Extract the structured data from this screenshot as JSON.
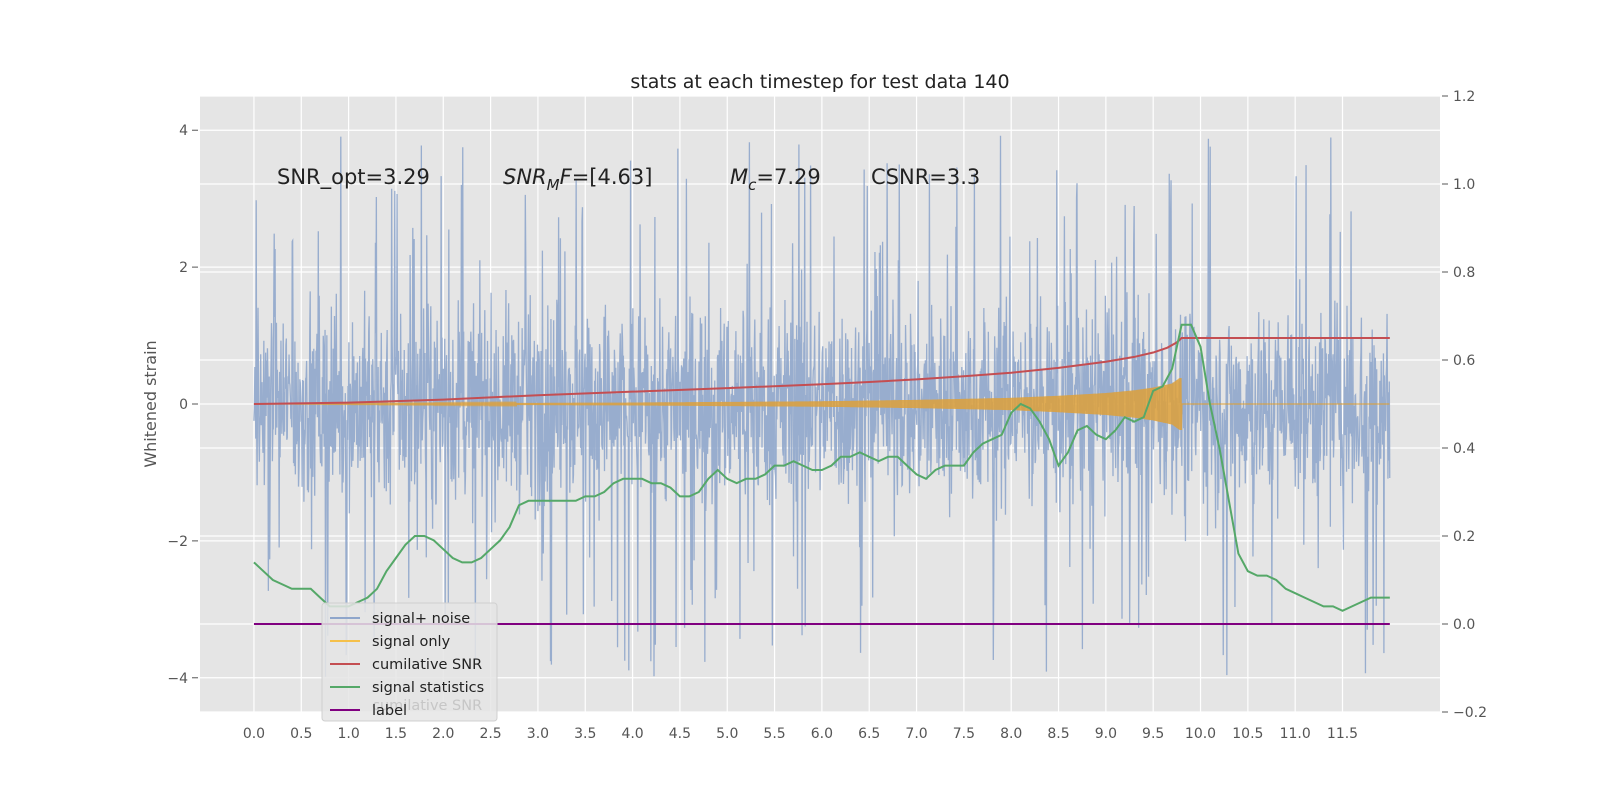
{
  "chart_data": {
    "type": "line",
    "title": "stats at each timestep for test data 140",
    "ylabel": "Whitened strain",
    "xlim": [
      -0.57,
      12.53
    ],
    "ylim": [
      -4.5,
      4.5
    ],
    "y2lim": [
      -0.2,
      1.2
    ],
    "grid": true,
    "background": "#e5e5e5",
    "x_ticks": [
      "0.0",
      "0.5",
      "1.0",
      "1.5",
      "2.0",
      "2.5",
      "3.0",
      "3.5",
      "4.0",
      "4.5",
      "5.0",
      "5.5",
      "6.0",
      "6.5",
      "7.0",
      "7.5",
      "8.0",
      "8.5",
      "9.0",
      "9.5",
      "10.0",
      "10.5",
      "11.0",
      "11.5"
    ],
    "y_ticks": [
      "−4",
      "−2",
      "0",
      "2",
      "4"
    ],
    "y2_ticks": [
      "−0.2",
      "0.0",
      "0.2",
      "0.4",
      "0.6",
      "0.8",
      "1.0",
      "1.2"
    ],
    "annotations": [
      {
        "text": "SNR_opt=3.29",
        "x": 0.2,
        "y": 3.3,
        "italic": false
      },
      {
        "text": "SNR_MF=[4.63]",
        "x": 2.6,
        "y": 3.3,
        "italic": true,
        "latex": "SNR_M F=[4.63]"
      },
      {
        "text": "M_c=7.29",
        "x": 5.0,
        "y": 3.3,
        "italic": true,
        "latex": "M_c=7.29"
      },
      {
        "text": "CSNR=3.3",
        "x": 6.5,
        "y": 3.3,
        "italic": false
      }
    ],
    "legend": {
      "placement": "lower-left",
      "entries": [
        {
          "label": "signal+ noise",
          "color": "#8fa6cb"
        },
        {
          "label": "signal only",
          "color": "#f5c04a"
        },
        {
          "label": "cumilative SNR",
          "color": "#c44e52"
        },
        {
          "label": "signal statistics",
          "color": "#55a868"
        },
        {
          "label": "label",
          "color": "#800080"
        }
      ],
      "hidden_text": "cumilative SNR"
    },
    "series": [
      {
        "name": "signal+ noise",
        "color": "#8fa6cb",
        "axis": "left",
        "kind": "noise",
        "x_range": [
          0.0,
          12.0
        ],
        "y_spread": 2.0,
        "min": -4.1,
        "max": 4.1
      },
      {
        "name": "signal only",
        "color": "#dda03a",
        "axis": "left",
        "kind": "chirp",
        "x_range": [
          0.0,
          12.0
        ],
        "merger_x": 9.8,
        "envelope": {
          "x": [
            0.0,
            2.0,
            4.0,
            6.0,
            7.0,
            8.0,
            8.5,
            9.0,
            9.3,
            9.5,
            9.7,
            9.78
          ],
          "amp": [
            0.0,
            0.01,
            0.02,
            0.04,
            0.06,
            0.09,
            0.12,
            0.16,
            0.2,
            0.24,
            0.3,
            0.38
          ]
        }
      },
      {
        "name": "cumilative SNR",
        "color": "#c44e52",
        "axis": "right",
        "x": [
          0.0,
          1.0,
          2.0,
          3.0,
          4.0,
          5.0,
          6.0,
          6.5,
          7.0,
          7.5,
          8.0,
          8.5,
          9.0,
          9.3,
          9.5,
          9.65,
          9.75,
          9.8,
          12.0
        ],
        "y": [
          0.5,
          0.503,
          0.51,
          0.52,
          0.528,
          0.536,
          0.545,
          0.55,
          0.556,
          0.563,
          0.571,
          0.582,
          0.596,
          0.607,
          0.617,
          0.628,
          0.64,
          0.65,
          0.65
        ]
      },
      {
        "name": "signal statistics",
        "color": "#55a868",
        "axis": "right",
        "x": [
          0.0,
          0.1,
          0.2,
          0.3,
          0.4,
          0.5,
          0.6,
          0.7,
          0.8,
          0.9,
          1.0,
          1.1,
          1.2,
          1.3,
          1.4,
          1.5,
          1.6,
          1.7,
          1.8,
          1.9,
          2.0,
          2.1,
          2.2,
          2.3,
          2.4,
          2.5,
          2.6,
          2.7,
          2.8,
          2.9,
          3.0,
          3.1,
          3.2,
          3.3,
          3.4,
          3.5,
          3.6,
          3.7,
          3.8,
          3.9,
          4.0,
          4.1,
          4.2,
          4.3,
          4.4,
          4.5,
          4.6,
          4.7,
          4.8,
          4.9,
          5.0,
          5.1,
          5.2,
          5.3,
          5.4,
          5.5,
          5.6,
          5.7,
          5.8,
          5.9,
          6.0,
          6.1,
          6.2,
          6.3,
          6.4,
          6.5,
          6.6,
          6.7,
          6.8,
          6.9,
          7.0,
          7.1,
          7.2,
          7.3,
          7.4,
          7.5,
          7.6,
          7.7,
          7.8,
          7.9,
          8.0,
          8.1,
          8.2,
          8.3,
          8.4,
          8.5,
          8.6,
          8.7,
          8.8,
          8.9,
          9.0,
          9.1,
          9.2,
          9.3,
          9.4,
          9.5,
          9.6,
          9.7,
          9.8,
          9.9,
          10.0,
          10.1,
          10.2,
          10.3,
          10.4,
          10.5,
          10.6,
          10.7,
          10.8,
          10.9,
          11.0,
          11.1,
          11.2,
          11.3,
          11.4,
          11.5,
          11.6,
          11.7,
          11.8,
          11.9,
          12.0
        ],
        "y": [
          0.14,
          0.12,
          0.1,
          0.09,
          0.08,
          0.08,
          0.08,
          0.06,
          0.04,
          0.04,
          0.04,
          0.05,
          0.06,
          0.08,
          0.12,
          0.15,
          0.18,
          0.2,
          0.2,
          0.19,
          0.17,
          0.15,
          0.14,
          0.14,
          0.15,
          0.17,
          0.19,
          0.22,
          0.27,
          0.28,
          0.28,
          0.28,
          0.28,
          0.28,
          0.28,
          0.29,
          0.29,
          0.3,
          0.32,
          0.33,
          0.33,
          0.33,
          0.32,
          0.32,
          0.31,
          0.29,
          0.29,
          0.3,
          0.33,
          0.35,
          0.33,
          0.32,
          0.33,
          0.33,
          0.34,
          0.36,
          0.36,
          0.37,
          0.36,
          0.35,
          0.35,
          0.36,
          0.38,
          0.38,
          0.39,
          0.38,
          0.37,
          0.38,
          0.38,
          0.36,
          0.34,
          0.33,
          0.35,
          0.36,
          0.36,
          0.36,
          0.39,
          0.41,
          0.42,
          0.43,
          0.48,
          0.5,
          0.49,
          0.46,
          0.42,
          0.36,
          0.39,
          0.44,
          0.45,
          0.43,
          0.42,
          0.44,
          0.47,
          0.46,
          0.47,
          0.53,
          0.54,
          0.58,
          0.68,
          0.68,
          0.63,
          0.5,
          0.4,
          0.28,
          0.16,
          0.12,
          0.11,
          0.11,
          0.1,
          0.08,
          0.07,
          0.06,
          0.05,
          0.04,
          0.04,
          0.03,
          0.04,
          0.05,
          0.06,
          0.06,
          0.06
        ]
      },
      {
        "name": "label",
        "color": "#800080",
        "axis": "right",
        "x": [
          0.0,
          12.0
        ],
        "y": [
          0.0,
          0.0
        ]
      }
    ]
  }
}
